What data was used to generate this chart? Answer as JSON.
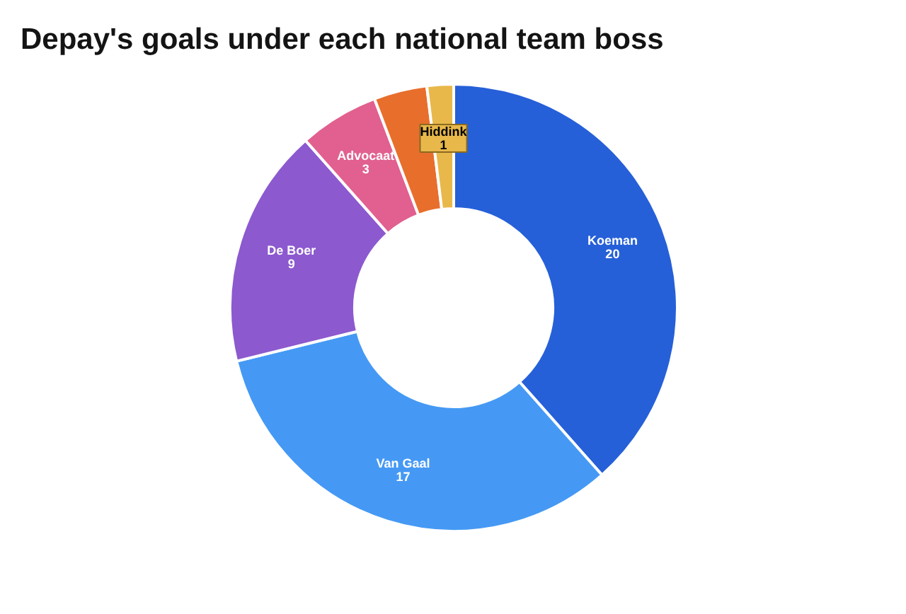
{
  "chart_data": {
    "type": "donut",
    "title": "Depay's goals under each national team boss",
    "categories": [
      "Koeman",
      "Van Gaal",
      "De Boer",
      "Advocaat",
      null,
      "Hiddink"
    ],
    "values": [
      20,
      17,
      9,
      3,
      2,
      1
    ],
    "colors": [
      "#2660d8",
      "#4599f4",
      "#8c59cf",
      "#e1608f",
      "#e86e2c",
      "#e8b84a"
    ],
    "value_labels": [
      "20",
      "17",
      "9",
      "3",
      null,
      "1"
    ]
  }
}
